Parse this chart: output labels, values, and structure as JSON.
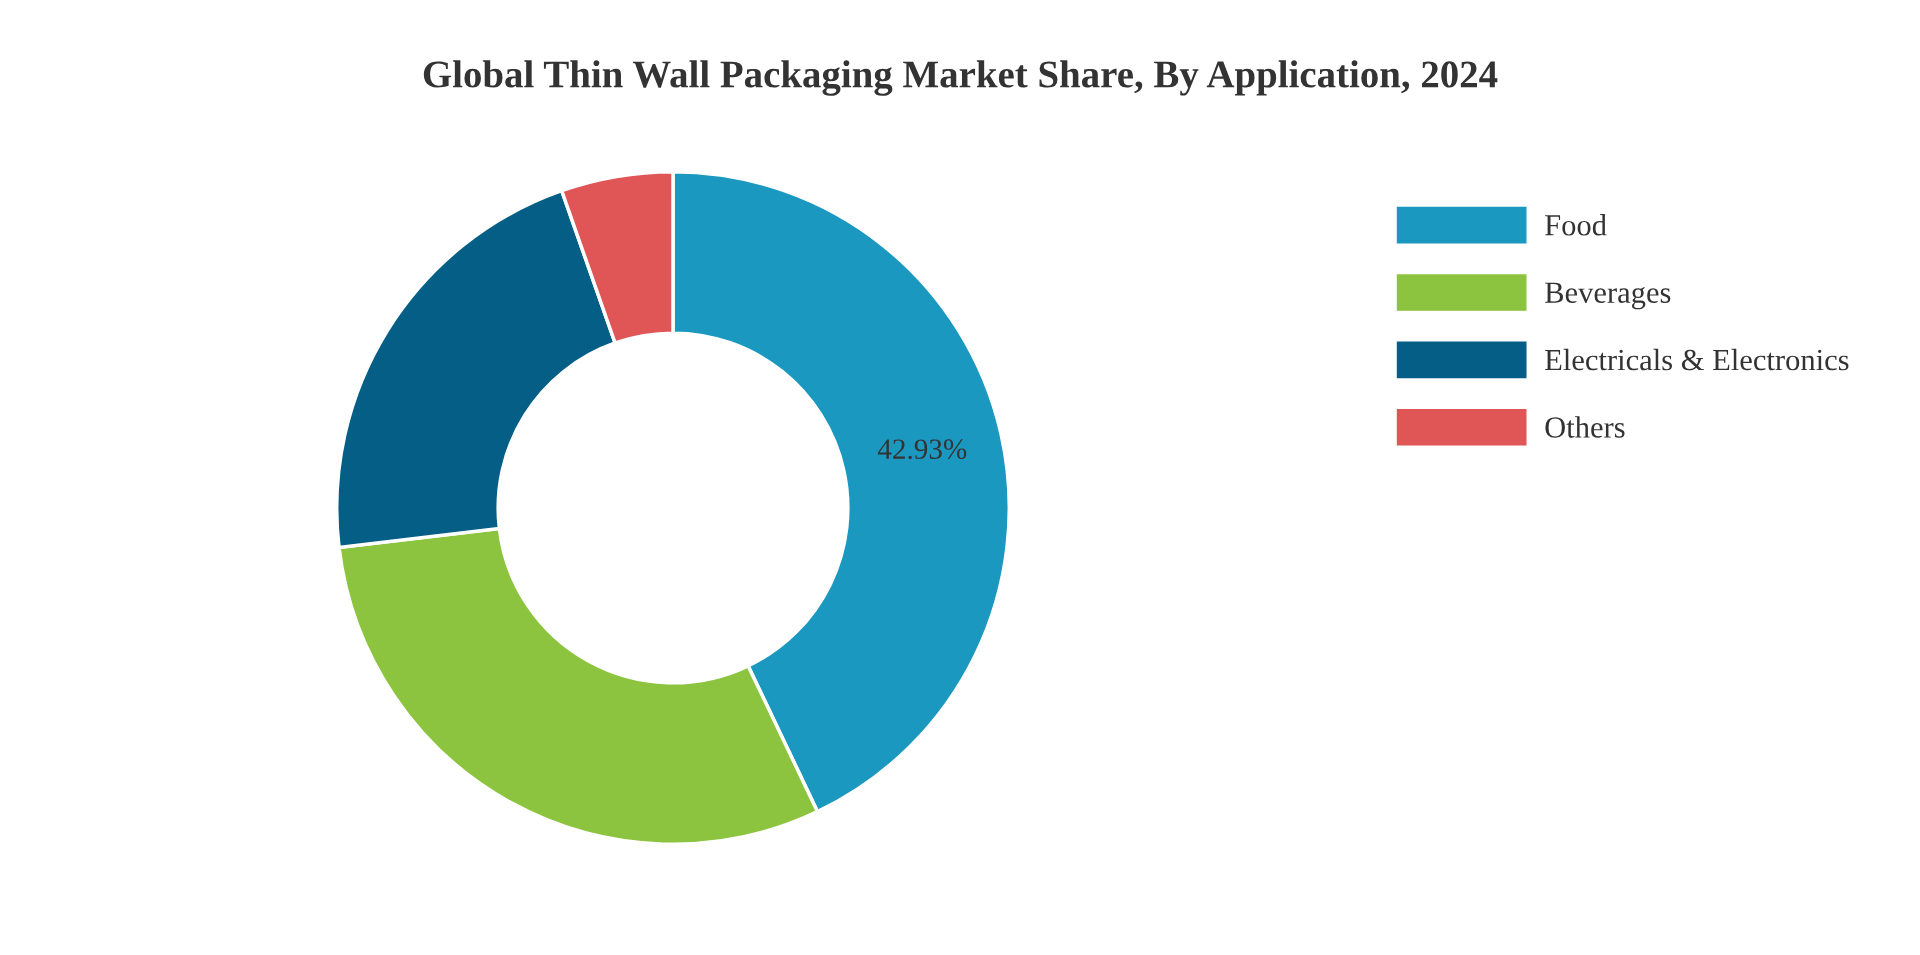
{
  "chart_data": {
    "type": "donut",
    "title": "Global Thin Wall Packaging Market Share, By Application, 2024",
    "categories": [
      "Food",
      "Beverages",
      "Electricals & Electronics",
      "Others"
    ],
    "values": [
      42.93,
      30.2,
      21.5,
      5.37
    ],
    "colors": [
      "#1b98c0",
      "#8cc43f",
      "#045e85",
      "#e05555"
    ],
    "value_labels": [
      "42.93%",
      null,
      null,
      null
    ],
    "legend": "top right"
  }
}
